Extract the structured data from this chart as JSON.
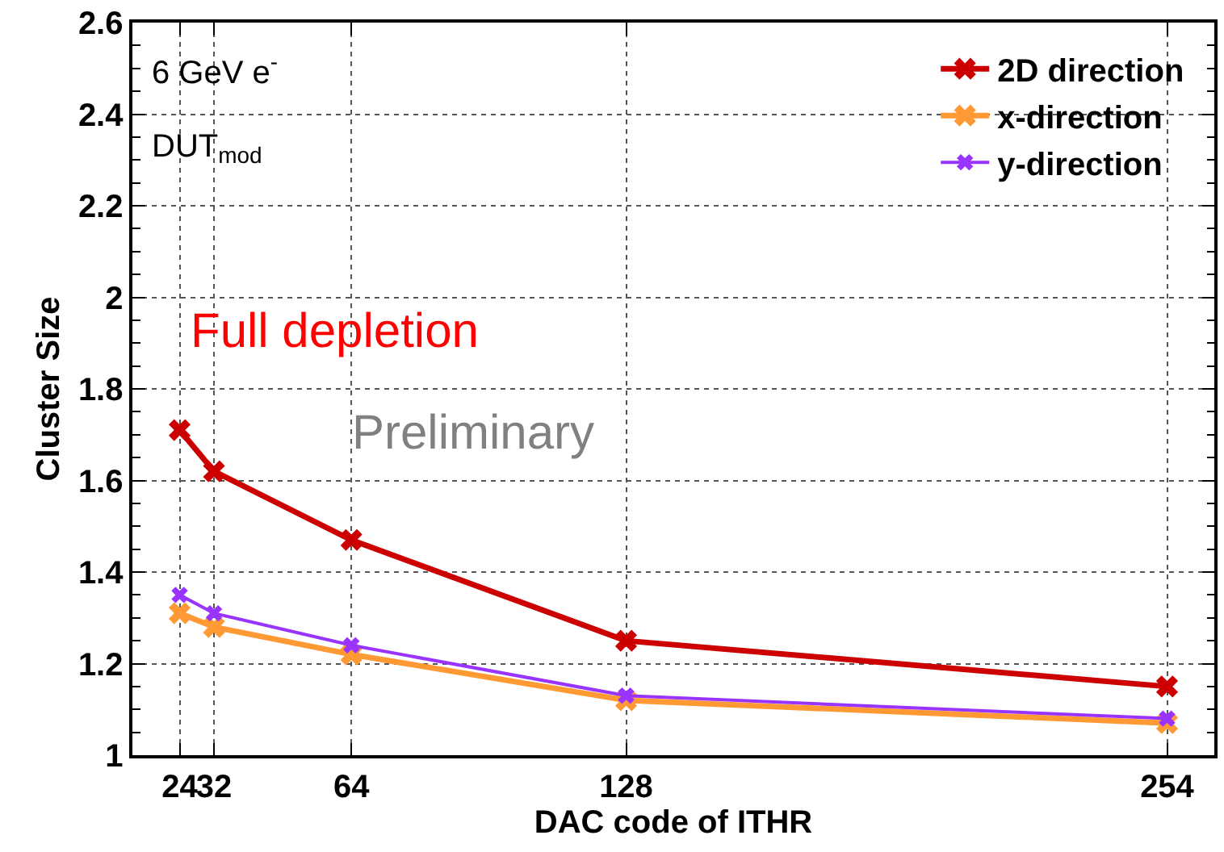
{
  "chart_data": {
    "type": "line",
    "xlabel": "DAC code of ITHR",
    "ylabel": "Cluster Size",
    "x": [
      24,
      32,
      64,
      128,
      254
    ],
    "series": [
      {
        "name": "2D direction",
        "color": "#cc0000",
        "values": [
          1.71,
          1.62,
          1.47,
          1.25,
          1.15
        ]
      },
      {
        "name": "x-direction",
        "color": "#ff9933",
        "values": [
          1.31,
          1.28,
          1.22,
          1.12,
          1.07
        ]
      },
      {
        "name": "y-direction",
        "color": "#9933ff",
        "values": [
          1.35,
          1.31,
          1.24,
          1.13,
          1.08
        ]
      }
    ],
    "xlim": [
      13,
      265
    ],
    "xticks": [
      24,
      32,
      64,
      128,
      254
    ],
    "ylim": [
      1,
      2.6
    ],
    "yticks": [
      1,
      1.2,
      1.4,
      1.6,
      1.8,
      2,
      2.2,
      2.4,
      2.6
    ],
    "grid": true,
    "legend": "top right",
    "marker": "cross",
    "line_style": "solid",
    "annotations": [
      "6 GeV e$^{-}$",
      "DUT$_{mod}$",
      "Full depletion",
      "Preliminary"
    ]
  }
}
